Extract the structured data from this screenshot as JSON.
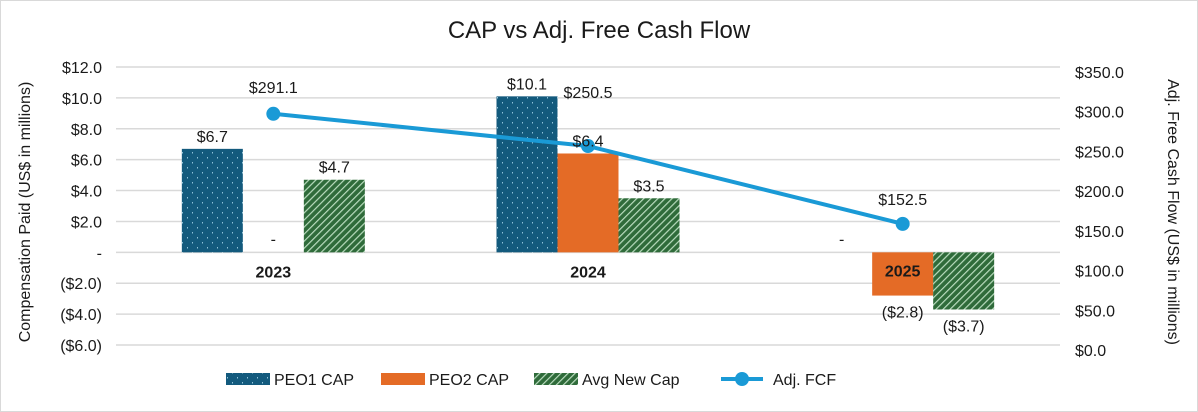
{
  "chart_data": {
    "type": "bar",
    "title": "CAP vs Adj. Free Cash Flow",
    "categories": [
      "2023",
      "2024",
      "2025"
    ],
    "ylabel": "Compensation Paid (US$ in millions)",
    "y2label": "Adj. Free Cash Flow (US$ in millions)",
    "ylim": [
      -6,
      12
    ],
    "y2lim": [
      0,
      350
    ],
    "yticks": [
      12,
      10,
      8,
      6,
      4,
      2,
      0,
      -2,
      -4,
      -6
    ],
    "ytick_labels": [
      "$12.0",
      "$10.0",
      "$8.0",
      "$6.0",
      "$4.0",
      "$2.0",
      "-",
      "($2.0)",
      "($4.0)",
      "($6.0)"
    ],
    "y2ticks": [
      350,
      300,
      250,
      200,
      150,
      100,
      50,
      0
    ],
    "y2tick_labels": [
      "$350.0",
      "$300.0",
      "$250.0",
      "$200.0",
      "$150.0",
      "$100.0",
      "$50.0",
      "$0.0"
    ],
    "grid": true,
    "legend_position": "bottom",
    "series": [
      {
        "name": "PEO1 CAP",
        "kind": "bar",
        "axis": "left",
        "color": "#135a7d",
        "pattern": "dots",
        "values": [
          6.7,
          10.1,
          0
        ],
        "labels": [
          "$6.7",
          "$10.1",
          "-"
        ]
      },
      {
        "name": "PEO2 CAP",
        "kind": "bar",
        "axis": "left",
        "color": "#e46b26",
        "pattern": "solid",
        "values": [
          0,
          6.4,
          -2.8
        ],
        "labels": [
          "-",
          "$6.4",
          "($2.8)"
        ]
      },
      {
        "name": "Avg New Cap",
        "kind": "bar",
        "axis": "left",
        "color": "#2f6b3a",
        "pattern": "hatch",
        "values": [
          4.7,
          3.5,
          -3.7
        ],
        "labels": [
          "$4.7",
          "$3.5",
          "($3.7)"
        ]
      },
      {
        "name": "Adj. FCF",
        "kind": "line",
        "axis": "right",
        "color": "#1a9ad6",
        "values": [
          291.1,
          250.5,
          152.5
        ],
        "labels": [
          "$291.1",
          "$250.5",
          "$152.5"
        ]
      }
    ]
  }
}
